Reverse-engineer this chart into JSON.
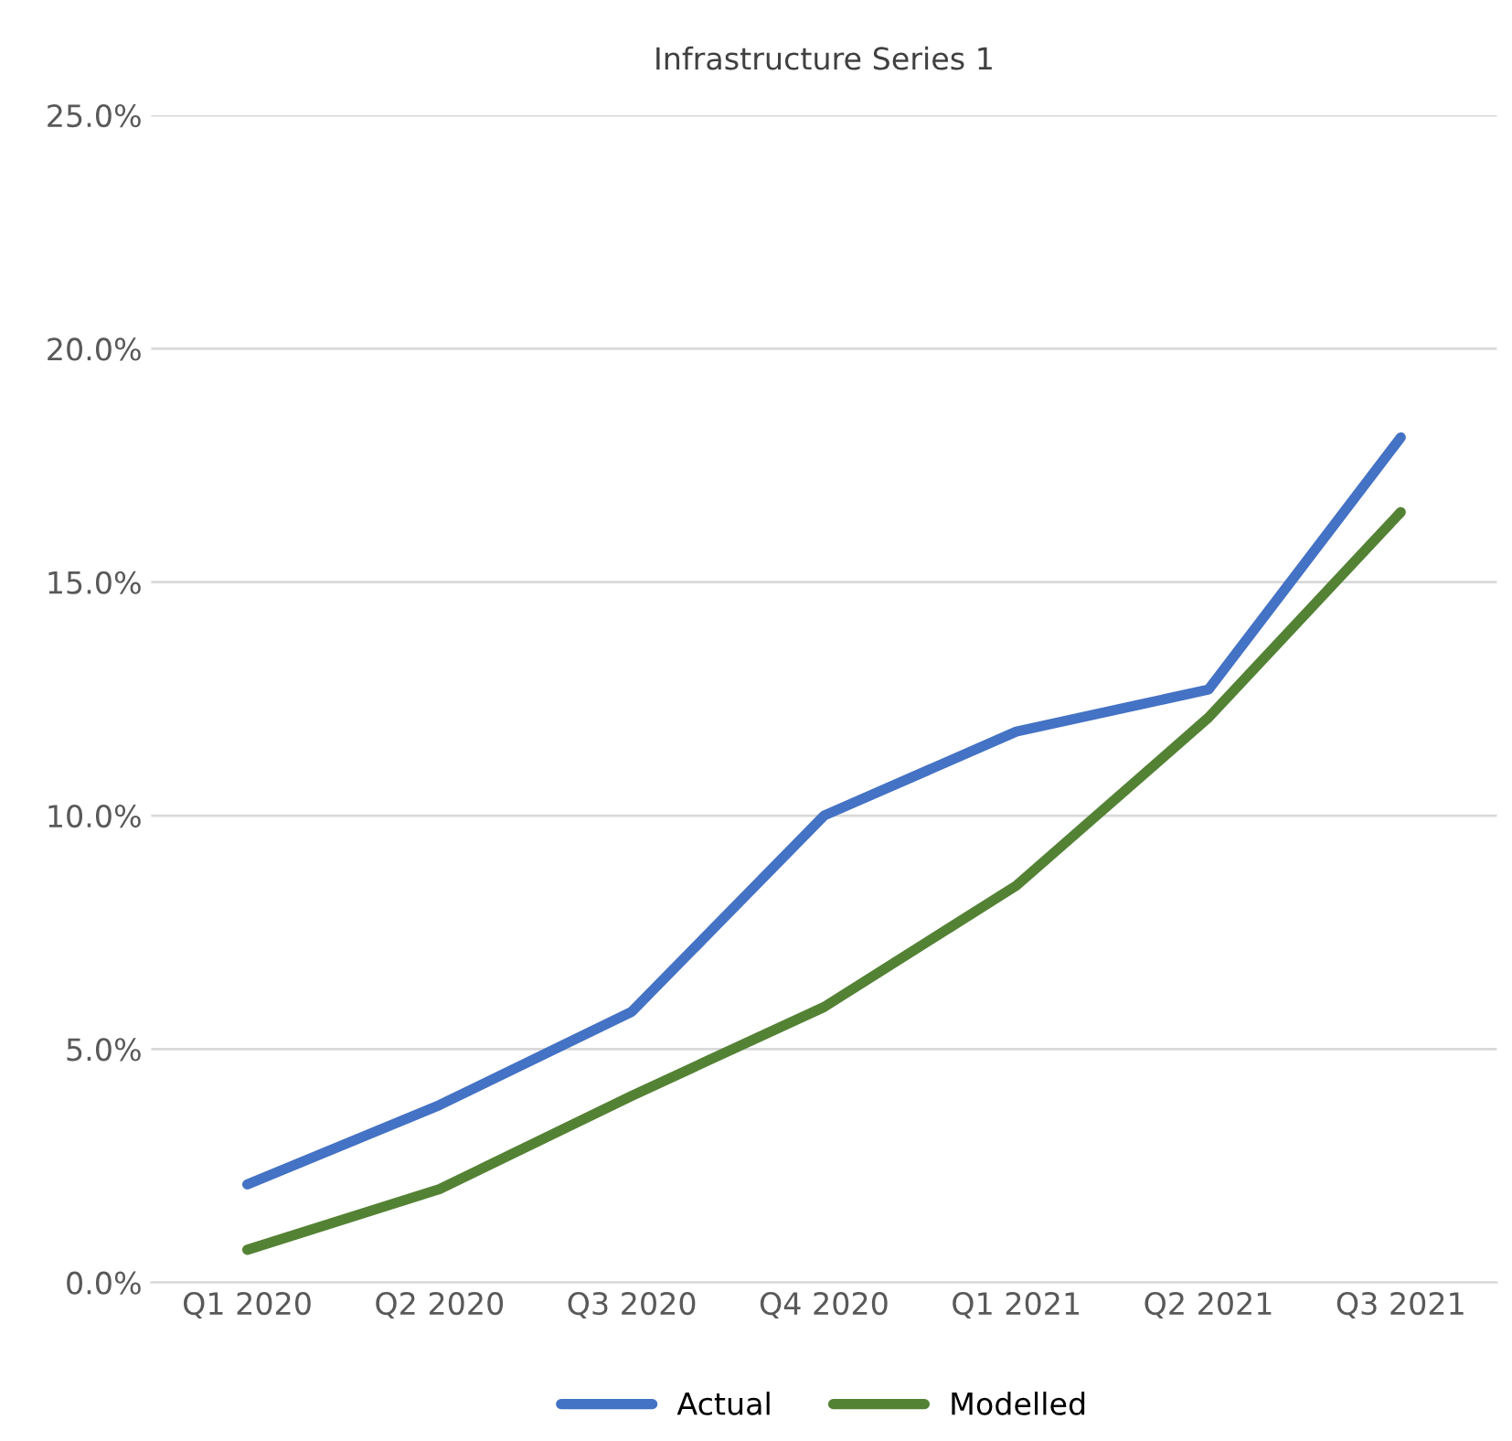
{
  "chart_data": {
    "type": "line",
    "title": "Infrastructure Series 1",
    "categories": [
      "Q1 2020",
      "Q2 2020",
      "Q3 2020",
      "Q4 2020",
      "Q1 2021",
      "Q2 2021",
      "Q3 2021"
    ],
    "series": [
      {
        "name": "Actual",
        "color": "#4472c4",
        "values": [
          2.1,
          3.8,
          5.8,
          10.0,
          11.8,
          12.7,
          18.1
        ]
      },
      {
        "name": "Modelled",
        "color": "#548235",
        "values": [
          0.7,
          2.0,
          4.0,
          5.9,
          8.5,
          12.1,
          16.5
        ]
      }
    ],
    "ylim": [
      0,
      25
    ],
    "yticks": [
      {
        "value": 0,
        "label": "0.0%"
      },
      {
        "value": 5,
        "label": "5.0%"
      },
      {
        "value": 10,
        "label": "10.0%"
      },
      {
        "value": 15,
        "label": "15.0%"
      },
      {
        "value": 20,
        "label": "20.0%"
      },
      {
        "value": 25,
        "label": "25.0%"
      }
    ],
    "grid": "y",
    "legend": "bottom",
    "marker": "none",
    "line_style": "solid"
  }
}
